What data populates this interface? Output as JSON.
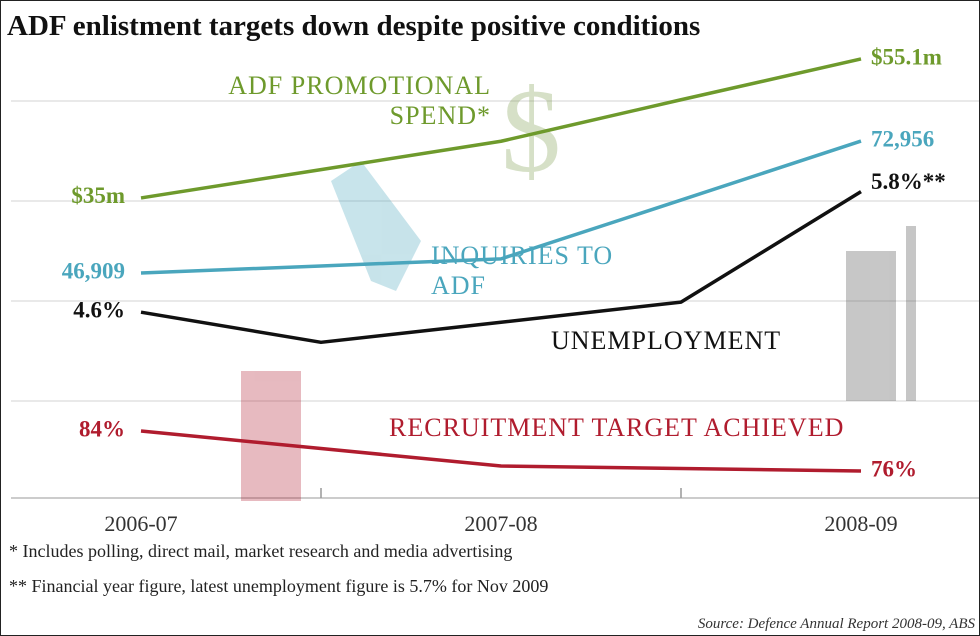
{
  "chart_data": {
    "type": "line",
    "title": "ADF enlistment targets down despite positive conditions",
    "categories": [
      "2006-07",
      null,
      "2007-08",
      null,
      "2008-09"
    ],
    "series": [
      {
        "name": "ADF PROMOTIONAL SPEND*",
        "color": "#6e9a2c",
        "values": [
          35,
          39.1,
          43.2,
          49.2,
          55.1
        ],
        "value_labels": [
          "$35m",
          null,
          null,
          null,
          "$55.1m"
        ],
        "ylim": [
          -8.4,
          57.7
        ]
      },
      {
        "name": "INQUIRIES TO ADF",
        "color": "#4aa6bd",
        "values": [
          46909,
          48300,
          49700,
          61300,
          72956
        ],
        "value_labels": [
          "46,909",
          null,
          null,
          null,
          "72,956"
        ],
        "ylim": [
          2500,
          92700
        ]
      },
      {
        "name": "UNEMPLOYMENT",
        "color": "#111111",
        "values": [
          4.6,
          4.3,
          4.5,
          4.7,
          5.8
        ],
        "value_labels": [
          "4.6%",
          null,
          null,
          null,
          "5.8%**"
        ],
        "ylim": [
          2.75,
          7.3
        ]
      },
      {
        "name": "RECRUITMENT TARGET ACHIEVED",
        "color": "#b01c2e",
        "values": [
          84,
          80.5,
          77,
          76.5,
          76
        ],
        "value_labels": [
          "84%",
          null,
          null,
          null,
          "76%"
        ],
        "ylim": [
          70.6,
          162
        ]
      }
    ],
    "notes": [
      "* Includes polling, direct mail, market research and media advertising",
      "** Financial year figure, latest unemployment figure is 5.7% for Nov 2009"
    ],
    "source": "Source: Defence Annual Report 2008-09, ABS"
  }
}
